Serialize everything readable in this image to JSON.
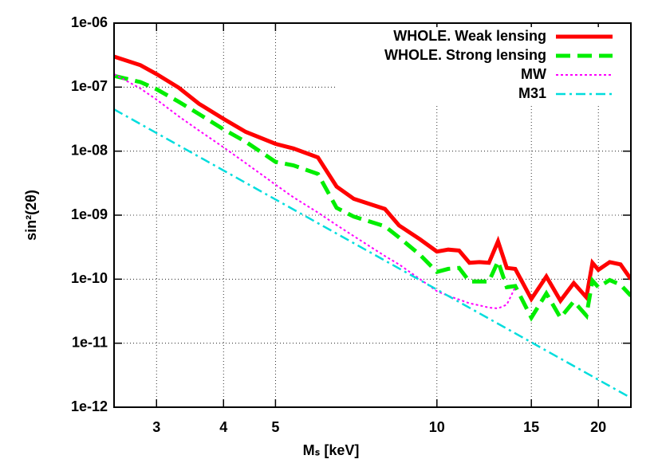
{
  "chart_data": {
    "type": "line",
    "x_label": "Mₛ [keV]",
    "y_label": "sin²(2θ)",
    "xscale": "log",
    "yscale": "log",
    "grid": true,
    "legend": "top-right",
    "xlim": [
      2.5,
      23
    ],
    "ylim": [
      1e-12,
      1e-06
    ],
    "xticks": [
      3,
      4,
      5,
      10,
      15,
      20
    ],
    "yticks": [
      {
        "value": 1e-12,
        "label": "1e-12"
      },
      {
        "value": 1e-11,
        "label": "1e-11"
      },
      {
        "value": 1e-10,
        "label": "1e-10"
      },
      {
        "value": 1e-09,
        "label": "1e-09"
      },
      {
        "value": 1e-08,
        "label": "1e-08"
      },
      {
        "value": 1e-07,
        "label": "1e-07"
      },
      {
        "value": 1e-06,
        "label": "1e-06"
      }
    ],
    "series": [
      {
        "name": "WHOLE. Weak lensing",
        "color": "#ff0000",
        "width": 5,
        "dash": "none",
        "x": [
          2.5,
          2.8,
          3,
          3.3,
          3.6,
          4,
          4.4,
          5,
          5.4,
          6,
          6.5,
          7,
          8,
          8.5,
          9.3,
          10,
          10.5,
          11,
          11.5,
          12,
          12.5,
          13,
          13.5,
          14,
          15,
          16,
          17,
          18,
          19,
          19.5,
          20,
          21,
          22,
          23
        ],
        "values": [
          3e-07,
          2.2e-07,
          1.6e-07,
          9.8e-08,
          5.5e-08,
          3.2e-08,
          2e-08,
          1.3e-08,
          1.1e-08,
          8e-09,
          2.8e-09,
          1.8e-09,
          1.25e-09,
          6.9e-10,
          4.2e-10,
          2.7e-10,
          2.9e-10,
          2.8e-10,
          1.8e-10,
          1.85e-10,
          1.8e-10,
          3.9e-10,
          1.5e-10,
          1.45e-10,
          4.9e-11,
          1.1e-10,
          4.6e-11,
          8.7e-11,
          5.2e-11,
          1.8e-10,
          1.4e-10,
          1.85e-10,
          1.7e-10,
          1e-10
        ]
      },
      {
        "name": "WHOLE. Strong lensing",
        "color": "#00ee00",
        "width": 5,
        "dash": "18 9",
        "x": [
          2.5,
          2.8,
          3,
          3.3,
          3.6,
          4,
          4.4,
          5,
          5.4,
          6,
          6.5,
          7,
          8,
          8.5,
          9.3,
          10,
          10.5,
          11,
          11.5,
          12,
          12.5,
          13,
          13.5,
          14,
          15,
          16,
          17,
          18,
          19,
          19.5,
          20,
          21,
          22,
          23
        ],
        "values": [
          1.5e-07,
          1.2e-07,
          9.3e-08,
          5.9e-08,
          3.8e-08,
          2.2e-08,
          1.4e-08,
          6.8e-09,
          6e-09,
          4.4e-09,
          1.3e-09,
          9.5e-10,
          6.7e-10,
          4.5e-10,
          2.4e-10,
          1.3e-10,
          1.45e-10,
          1.5e-10,
          9.2e-11,
          9.2e-11,
          9.2e-11,
          1.9e-10,
          7.5e-11,
          7.8e-11,
          2.5e-11,
          6e-11,
          2.5e-11,
          4.5e-11,
          2.7e-11,
          9.5e-11,
          7.5e-11,
          9.7e-11,
          8.2e-11,
          5.5e-11
        ]
      },
      {
        "name": "MW",
        "color": "#ff00ff",
        "width": 2,
        "dash": "3 3",
        "x": [
          2.5,
          2.8,
          3,
          3.3,
          3.6,
          4,
          4.4,
          5,
          5.4,
          6,
          6.5,
          7,
          8,
          8.5,
          9.3,
          10,
          10.5,
          11,
          11.5,
          12,
          12.5,
          13,
          13.5,
          14
        ],
        "values": [
          1.6e-07,
          9.5e-08,
          6.4e-08,
          3.5e-08,
          2.1e-08,
          1.15e-08,
          6.5e-09,
          3e-09,
          1.9e-09,
          1.1e-09,
          7e-10,
          4.7e-10,
          2.3e-10,
          1.7e-10,
          1e-10,
          6.5e-11,
          5.5e-11,
          4.8e-11,
          4.2e-11,
          3.9e-11,
          3.6e-11,
          3.5e-11,
          4e-11,
          7.5e-11
        ]
      },
      {
        "name": "M31",
        "color": "#00dddd",
        "width": 2.5,
        "dash": "12 5 3 5",
        "x": [
          2.5,
          23
        ],
        "values": [
          4.5e-08,
          1.4e-12
        ]
      }
    ]
  }
}
